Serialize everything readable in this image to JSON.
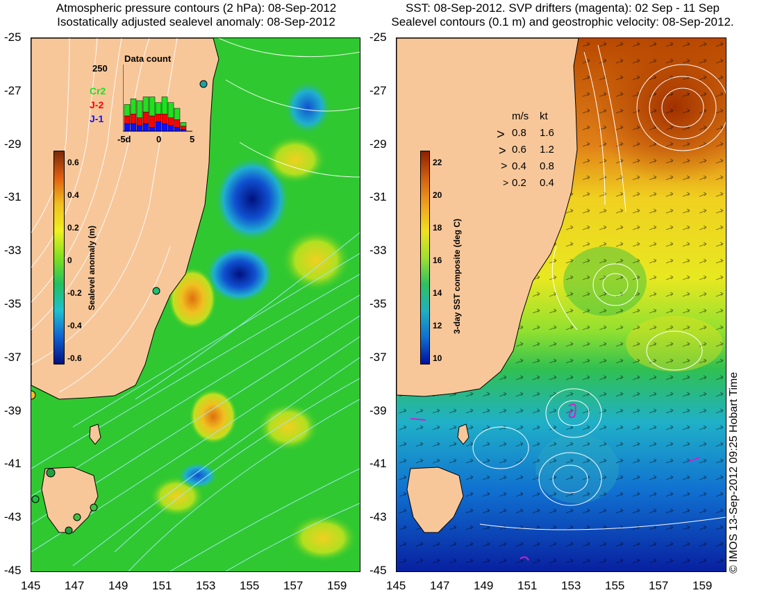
{
  "left_panel": {
    "title_line1": "Atmospheric pressure contours (2 hPa): 08-Sep-2012",
    "title_line2": "Isostatically adjusted sealevel anomaly: 08-Sep-2012",
    "colorbar": {
      "label": "Sealevel anomaly (m)",
      "ticks": [
        "0.6",
        "0.4",
        "0.2",
        "0",
        "-0.2",
        "-0.4",
        "-0.6"
      ],
      "colors": [
        "#7a2a0a",
        "#e06010",
        "#f0c020",
        "#f0f020",
        "#80e020",
        "#20c060",
        "#20c0d0",
        "#1060d0",
        "#001080"
      ]
    },
    "inset": {
      "title": "Data count",
      "max_label": "250",
      "legend": [
        {
          "name": "Cr2",
          "color": "#20e020"
        },
        {
          "name": "J-2",
          "color": "#ff0000"
        },
        {
          "name": "J-1",
          "color": "#1010ff"
        }
      ],
      "x_ticks": [
        "-5d",
        "0",
        "5"
      ]
    }
  },
  "right_panel": {
    "title_line1": "SST: 08-Sep-2012. SVP drifters (magenta): 02 Sep - 11 Sep",
    "title_line2": "Sealevel contours (0.1 m) and geostrophic velocity: 08-Sep-2012.",
    "colorbar": {
      "label": "3-day SST composite (deg C)",
      "ticks": [
        "22",
        "20",
        "18",
        "16",
        "14",
        "12",
        "10"
      ],
      "colors": [
        "#8b2000",
        "#d06010",
        "#f0a020",
        "#f0e020",
        "#a0e030",
        "#30c060",
        "#20b0c0",
        "#1070d0",
        "#0010a0"
      ]
    },
    "vector_legend": {
      "header_ms": "m/s",
      "header_kt": "kt",
      "rows": [
        {
          "ms": "0.8",
          "kt": "1.6"
        },
        {
          "ms": "0.6",
          "kt": "1.2"
        },
        {
          "ms": "0.4",
          "kt": "0.8"
        },
        {
          "ms": "0.2",
          "kt": "0.4"
        }
      ]
    }
  },
  "axes": {
    "y_ticks": [
      "-25",
      "-27",
      "-29",
      "-31",
      "-33",
      "-35",
      "-37",
      "-39",
      "-41",
      "-43",
      "-45"
    ],
    "x_ticks": [
      "145",
      "147",
      "149",
      "151",
      "153",
      "155",
      "157",
      "159"
    ]
  },
  "copyright": "© IMOS 13-Sep-2012 09:25 Hobart Time",
  "colors": {
    "land": "#f7c79a",
    "ocean_green": "#30c830",
    "coast_line": "#000000"
  }
}
